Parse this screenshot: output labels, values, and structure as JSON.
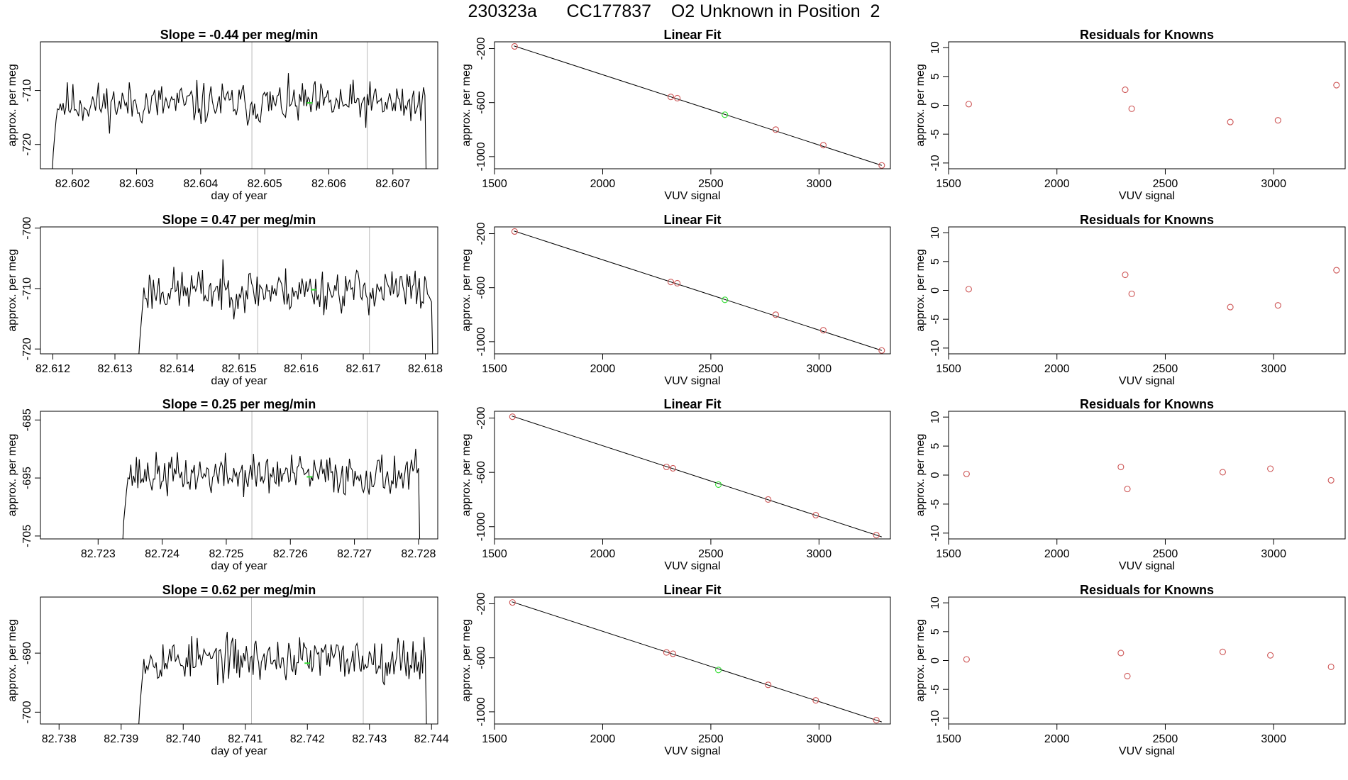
{
  "page": {
    "title_parts": [
      "230323a",
      "CC177837",
      "O2 Unknown in Position  2"
    ],
    "colors": {
      "trace": "#000000",
      "known": "#cd5555",
      "unknown": "#33dd33",
      "marker": "#bbbbbb",
      "frame": "#000000"
    }
  },
  "chart_data": [
    {
      "type": "line",
      "row": 0,
      "title": "Slope =  -0.44  per meg/min",
      "xlabel": "day of year",
      "ylabel": "approx. per meg",
      "xlim": [
        82.6015,
        82.6077
      ],
      "ylim": [
        -724.5,
        -701
      ],
      "xticks": [
        82.602,
        82.603,
        82.604,
        82.605,
        82.606,
        82.607
      ],
      "xtick_labels": [
        "82.602",
        "82.603",
        "82.604",
        "82.605",
        "82.606",
        "82.607"
      ],
      "yticks": [
        -720,
        -710
      ],
      "ytick_labels": [
        "-720",
        "-710"
      ],
      "markers": [
        82.6048,
        82.6066
      ],
      "unknown_point": [
        82.6057,
        -712.3
      ],
      "trace": {
        "x_start": 82.6017,
        "x_end": 82.6075,
        "baseline": -712.5,
        "noise": 2.5,
        "seed": 11,
        "drop_to": -726
      }
    },
    {
      "type": "scatter",
      "row": 0,
      "title": "Linear Fit",
      "xlabel": "VUV signal",
      "ylabel": "approx. per meg",
      "xlim": [
        1500,
        3330
      ],
      "ylim": [
        -1090,
        -150
      ],
      "xticks": [
        1500,
        2000,
        2500,
        3000
      ],
      "xtick_labels": [
        "1500",
        "2000",
        "2500",
        "3000"
      ],
      "yticks": [
        -1000,
        -600,
        -200
      ],
      "ytick_labels": [
        "-1000",
        "-600",
        "-200"
      ],
      "fit_line": [
        [
          1590,
          -180
        ],
        [
          3290,
          -1065
        ]
      ],
      "knowns": [
        [
          1593,
          -184
        ],
        [
          2315,
          -558
        ],
        [
          2345,
          -567
        ],
        [
          2800,
          -800
        ],
        [
          3020,
          -915
        ],
        [
          3290,
          -1065
        ]
      ],
      "unknowns": [
        [
          2565,
          -690
        ]
      ]
    },
    {
      "type": "scatter",
      "row": 0,
      "title": "Residuals for Knowns",
      "xlabel": "VUV signal",
      "ylabel": "approx. per meg",
      "xlim": [
        1500,
        3330
      ],
      "ylim": [
        -11,
        11
      ],
      "xticks": [
        1500,
        2000,
        2500,
        3000
      ],
      "xtick_labels": [
        "1500",
        "2000",
        "2500",
        "3000"
      ],
      "yticks": [
        -10,
        -5,
        0,
        5,
        10
      ],
      "ytick_labels": [
        "-10",
        "-5",
        "0",
        "5",
        "10"
      ],
      "knowns": [
        [
          1593,
          0.2
        ],
        [
          2315,
          2.7
        ],
        [
          2345,
          -0.6
        ],
        [
          2800,
          -2.9
        ],
        [
          3020,
          -2.6
        ],
        [
          3290,
          3.5
        ]
      ]
    },
    {
      "type": "line",
      "row": 1,
      "title": "Slope =  0.47  per meg/min",
      "xlabel": "day of year",
      "ylabel": "approx. per meg",
      "xlim": [
        82.6118,
        82.6182
      ],
      "ylim": [
        -720.8,
        -699.8
      ],
      "xticks": [
        82.612,
        82.613,
        82.614,
        82.615,
        82.616,
        82.617,
        82.618
      ],
      "xtick_labels": [
        "82.612",
        "82.613",
        "82.614",
        "82.615",
        "82.616",
        "82.617",
        "82.618"
      ],
      "yticks": [
        -720,
        -710,
        -700
      ],
      "ytick_labels": [
        "-720",
        "-710",
        "-700"
      ],
      "markers": [
        82.6153,
        82.6171
      ],
      "unknown_point": [
        82.6162,
        -710.2
      ],
      "trace": {
        "x_start": 82.6134,
        "x_end": 82.6181,
        "baseline": -710.3,
        "noise": 2.3,
        "seed": 23,
        "drop_to": -722
      }
    },
    {
      "type": "scatter",
      "row": 1,
      "title": "Linear Fit",
      "xlabel": "VUV signal",
      "ylabel": "approx. per meg",
      "xlim": [
        1500,
        3330
      ],
      "ylim": [
        -1090,
        -150
      ],
      "xticks": [
        1500,
        2000,
        2500,
        3000
      ],
      "xtick_labels": [
        "1500",
        "2000",
        "2500",
        "3000"
      ],
      "yticks": [
        -1000,
        -600,
        -200
      ],
      "ytick_labels": [
        "-1000",
        "-600",
        "-200"
      ],
      "fit_line": [
        [
          1590,
          -180
        ],
        [
          3290,
          -1065
        ]
      ],
      "knowns": [
        [
          1593,
          -184
        ],
        [
          2315,
          -558
        ],
        [
          2345,
          -567
        ],
        [
          2800,
          -800
        ],
        [
          3020,
          -915
        ],
        [
          3290,
          -1065
        ]
      ],
      "unknowns": [
        [
          2565,
          -690
        ]
      ]
    },
    {
      "type": "scatter",
      "row": 1,
      "title": "Residuals for Knowns",
      "xlabel": "VUV signal",
      "ylabel": "approx. per meg",
      "xlim": [
        1500,
        3330
      ],
      "ylim": [
        -11,
        11
      ],
      "xticks": [
        1500,
        2000,
        2500,
        3000
      ],
      "xtick_labels": [
        "1500",
        "2000",
        "2500",
        "3000"
      ],
      "yticks": [
        -10,
        -5,
        0,
        5,
        10
      ],
      "ytick_labels": [
        "-10",
        "-5",
        "0",
        "5",
        "10"
      ],
      "knowns": [
        [
          1593,
          0.2
        ],
        [
          2315,
          2.7
        ],
        [
          2345,
          -0.6
        ],
        [
          2800,
          -2.9
        ],
        [
          3020,
          -2.6
        ],
        [
          3290,
          3.5
        ]
      ]
    },
    {
      "type": "line",
      "row": 2,
      "title": "Slope =  0.25  per meg/min",
      "xlabel": "day of year",
      "ylabel": "approx. per meg",
      "xlim": [
        82.7221,
        82.7283
      ],
      "ylim": [
        -705.5,
        -683.5
      ],
      "xticks": [
        82.723,
        82.724,
        82.725,
        82.726,
        82.727,
        82.728
      ],
      "xtick_labels": [
        "82.723",
        "82.724",
        "82.725",
        "82.726",
        "82.727",
        "82.728"
      ],
      "yticks": [
        -705,
        -695,
        -685
      ],
      "ytick_labels": [
        "-705",
        "-695",
        "-685"
      ],
      "markers": [
        82.7254,
        82.7272
      ],
      "unknown_point": [
        82.7263,
        -694.8
      ],
      "trace": {
        "x_start": 82.7234,
        "x_end": 82.728,
        "baseline": -694.5,
        "noise": 2.2,
        "seed": 37,
        "drop_to": -707
      }
    },
    {
      "type": "scatter",
      "row": 2,
      "title": "Linear Fit",
      "xlabel": "VUV signal",
      "ylabel": "approx. per meg",
      "xlim": [
        1500,
        3330
      ],
      "ylim": [
        -1090,
        -150
      ],
      "xticks": [
        1500,
        2000,
        2500,
        3000
      ],
      "xtick_labels": [
        "1500",
        "2000",
        "2500",
        "3000"
      ],
      "yticks": [
        -1000,
        -600,
        -200
      ],
      "ytick_labels": [
        "-1000",
        "-600",
        "-200"
      ],
      "fit_line": [
        [
          1580,
          -185
        ],
        [
          3290,
          -1075
        ]
      ],
      "knowns": [
        [
          1583,
          -190
        ],
        [
          2295,
          -560
        ],
        [
          2325,
          -570
        ],
        [
          2765,
          -800
        ],
        [
          2985,
          -915
        ],
        [
          3265,
          -1062
        ]
      ],
      "unknowns": [
        [
          2535,
          -690
        ]
      ]
    },
    {
      "type": "scatter",
      "row": 2,
      "title": "Residuals for Knowns",
      "xlabel": "VUV signal",
      "ylabel": "approx. per meg",
      "xlim": [
        1500,
        3330
      ],
      "ylim": [
        -11,
        11
      ],
      "xticks": [
        1500,
        2000,
        2500,
        3000
      ],
      "xtick_labels": [
        "1500",
        "2000",
        "2500",
        "3000"
      ],
      "yticks": [
        -10,
        -5,
        0,
        5,
        10
      ],
      "ytick_labels": [
        "-10",
        "-5",
        "0",
        "5",
        "10"
      ],
      "knowns": [
        [
          1583,
          0.2
        ],
        [
          2295,
          1.4
        ],
        [
          2325,
          -2.4
        ],
        [
          2765,
          0.5
        ],
        [
          2985,
          1.1
        ],
        [
          3265,
          -0.9
        ]
      ]
    },
    {
      "type": "line",
      "row": 3,
      "title": "Slope =  0.62  per meg/min",
      "xlabel": "day of year",
      "ylabel": "approx. per meg",
      "xlim": [
        82.7377,
        82.7441
      ],
      "ylim": [
        -702,
        -680.5
      ],
      "xticks": [
        82.738,
        82.739,
        82.74,
        82.741,
        82.742,
        82.743,
        82.744
      ],
      "xtick_labels": [
        "82.738",
        "82.739",
        "82.740",
        "82.741",
        "82.742",
        "82.743",
        "82.744"
      ],
      "yticks": [
        -700,
        -690
      ],
      "ytick_labels": [
        "-700",
        "-690"
      ],
      "markers": [
        82.7411,
        82.7429
      ],
      "unknown_point": [
        82.742,
        -691.7
      ],
      "trace": {
        "x_start": 82.7393,
        "x_end": 82.7439,
        "baseline": -691.0,
        "noise": 2.3,
        "seed": 53,
        "drop_to": -703
      }
    },
    {
      "type": "scatter",
      "row": 3,
      "title": "Linear Fit",
      "xlabel": "VUV signal",
      "ylabel": "approx. per meg",
      "xlim": [
        1500,
        3330
      ],
      "ylim": [
        -1090,
        -150
      ],
      "xticks": [
        1500,
        2000,
        2500,
        3000
      ],
      "xtick_labels": [
        "1500",
        "2000",
        "2500",
        "3000"
      ],
      "yticks": [
        -1000,
        -600,
        -200
      ],
      "ytick_labels": [
        "-1000",
        "-600",
        "-200"
      ],
      "fit_line": [
        [
          1580,
          -185
        ],
        [
          3290,
          -1075
        ]
      ],
      "knowns": [
        [
          1583,
          -190
        ],
        [
          2295,
          -560
        ],
        [
          2325,
          -570
        ],
        [
          2765,
          -800
        ],
        [
          2985,
          -915
        ],
        [
          3265,
          -1062
        ]
      ],
      "unknowns": [
        [
          2535,
          -690
        ]
      ]
    },
    {
      "type": "scatter",
      "row": 3,
      "title": "Residuals for Knowns",
      "xlabel": "VUV signal",
      "ylabel": "approx. per meg",
      "xlim": [
        1500,
        3330
      ],
      "ylim": [
        -11,
        11
      ],
      "xticks": [
        1500,
        2000,
        2500,
        3000
      ],
      "xtick_labels": [
        "1500",
        "2000",
        "2500",
        "3000"
      ],
      "yticks": [
        -10,
        -5,
        0,
        5,
        10
      ],
      "ytick_labels": [
        "-10",
        "-5",
        "0",
        "5",
        "10"
      ],
      "knowns": [
        [
          1583,
          0.2
        ],
        [
          2295,
          1.3
        ],
        [
          2325,
          -2.7
        ],
        [
          2765,
          1.5
        ],
        [
          2985,
          0.9
        ],
        [
          3265,
          -1.1
        ]
      ]
    }
  ]
}
